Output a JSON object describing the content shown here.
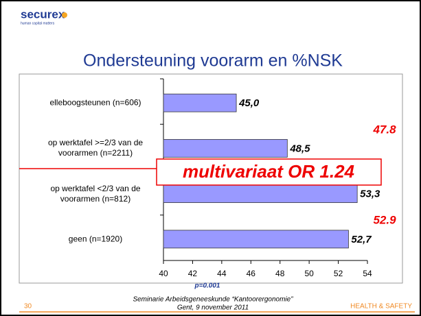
{
  "chart_data": {
    "type": "barh",
    "logo": "securex",
    "logo_tagline": "human capital matters",
    "title": "Ondersteuning voorarm en %NSK",
    "categories": [
      "elleboogsteunen (n=606)",
      "op werktafel >=2/3 van de voorarmen (n=2211)",
      "op werktafel <2/3 van de voorarmen (n=812)",
      "geen (n=1920)"
    ],
    "values": [
      45.0,
      48.5,
      53.3,
      52.7
    ],
    "value_labels": [
      "45,0",
      "48,5",
      "53,3",
      "52,7"
    ],
    "color": "#9999ff",
    "xlim": [
      40,
      54
    ],
    "xticks": [
      40,
      42,
      44,
      46,
      48,
      50,
      52,
      54
    ],
    "grid": false,
    "annotations": [
      "47.8",
      "52.9",
      "multivariaat OR 1.24",
      "p=0.001"
    ],
    "footer": [
      "Seminarie Arbeidsgeneeskunde “Kantoorergonomie”",
      "Gent, 9 november 2011"
    ],
    "page_number": "30",
    "brand": "HEALTH & SAFETY"
  }
}
